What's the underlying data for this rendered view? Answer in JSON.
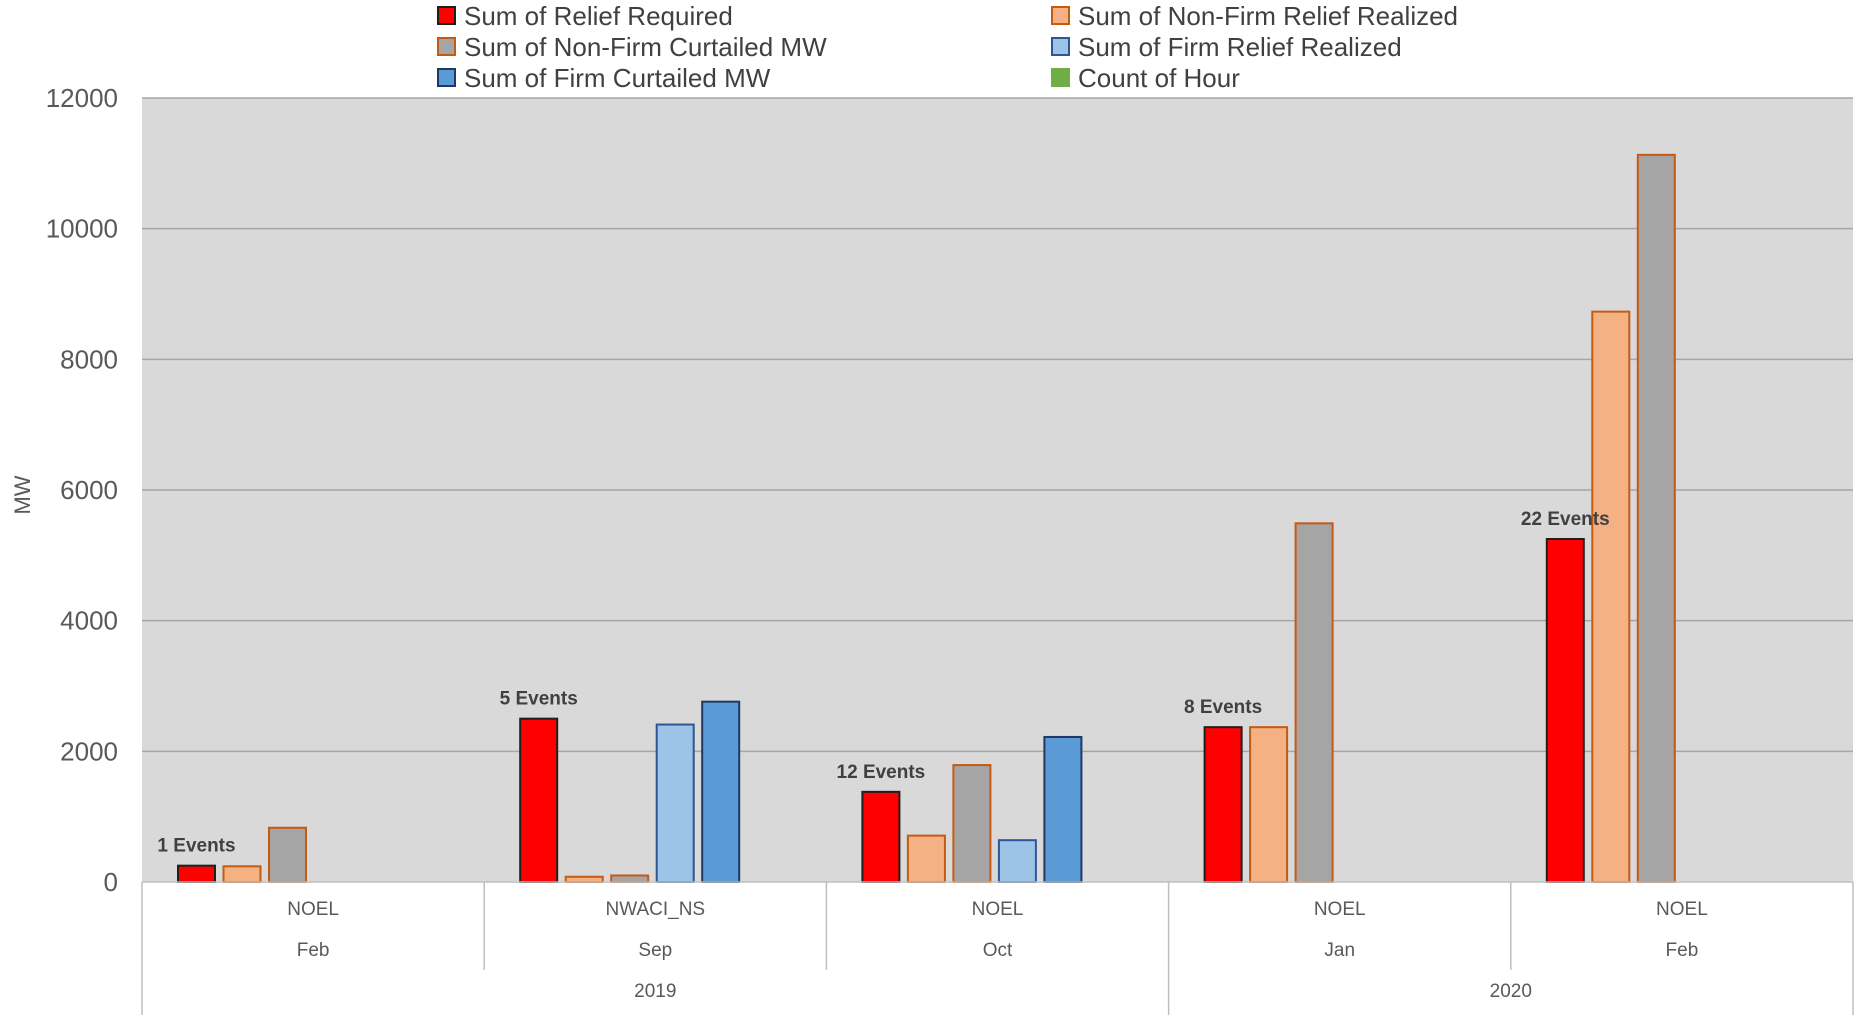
{
  "chart_data": {
    "type": "bar",
    "ylabel": "MW",
    "xlabel": "",
    "ylim": [
      0,
      12000
    ],
    "yticks": [
      0,
      2000,
      4000,
      6000,
      8000,
      10000,
      12000
    ],
    "grid": true,
    "legend_position": "top",
    "groups": [
      {
        "category": "NOEL",
        "month": "Feb",
        "year": "2019",
        "annotation": "1 Events"
      },
      {
        "category": "NWACI_NS",
        "month": "Sep",
        "year": "2019",
        "annotation": "5 Events"
      },
      {
        "category": "NOEL",
        "month": "Oct",
        "year": "2019",
        "annotation": "12 Events"
      },
      {
        "category": "NOEL",
        "month": "Jan",
        "year": "2020",
        "annotation": "8 Events"
      },
      {
        "category": "NOEL",
        "month": "Feb",
        "year": "2020",
        "annotation": "22 Events"
      }
    ],
    "years": [
      {
        "label": "2019",
        "span": [
          0,
          2
        ]
      },
      {
        "label": "2020",
        "span": [
          3,
          4
        ]
      }
    ],
    "series": [
      {
        "name": "Sum of Relief Required",
        "color": "#ff0000",
        "edge": "#1f1f1f",
        "values": [
          250,
          2500,
          1380,
          2370,
          5250
        ]
      },
      {
        "name": "Sum of Non-Firm Relief Realized",
        "color": "#f4b183",
        "edge": "#c55a11",
        "values": [
          240,
          80,
          710,
          2370,
          8730
        ]
      },
      {
        "name": "Sum of Non-Firm Curtailed MW",
        "color": "#a5a5a5",
        "edge": "#c55a11",
        "values": [
          830,
          100,
          1790,
          5490,
          11130
        ]
      },
      {
        "name": "Sum of Firm Relief Realized",
        "color": "#9dc3e6",
        "edge": "#2f5597",
        "values": [
          0,
          2410,
          640,
          0,
          0
        ]
      },
      {
        "name": "Sum of Firm Curtailed MW",
        "color": "#5b9bd5",
        "edge": "#203864",
        "values": [
          0,
          2760,
          2220,
          0,
          0
        ]
      },
      {
        "name": "Count of Hour",
        "color": "#70ad47",
        "edge": "#70ad47",
        "values": [
          1,
          5,
          12,
          8,
          22
        ]
      }
    ]
  }
}
